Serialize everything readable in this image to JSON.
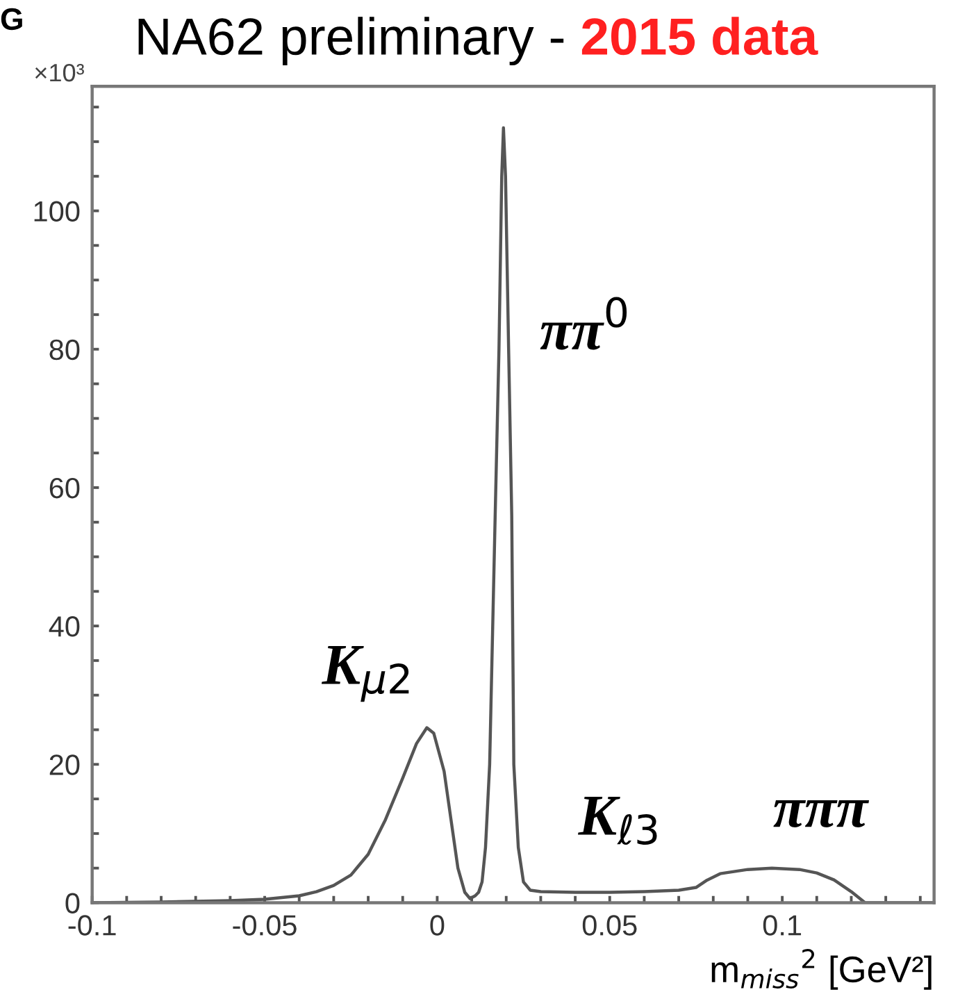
{
  "chart_data": {
    "type": "line",
    "title": "NA62 preliminary - ",
    "subtitle": "2015 data",
    "xlabel": "m$_{miss}$$^{2}$ [GeV²]",
    "x": [
      -0.1,
      -0.08,
      -0.06,
      -0.05,
      -0.04,
      -0.035,
      -0.03,
      -0.025,
      -0.02,
      -0.015,
      -0.01,
      -0.006,
      -0.003,
      -0.001,
      0.002,
      0.004,
      0.006,
      0.008,
      0.0095,
      0.011,
      0.012,
      0.013,
      0.014,
      0.0152,
      0.0168,
      0.0179,
      0.0187,
      0.0192,
      0.0198,
      0.0207,
      0.0216,
      0.0222,
      0.0235,
      0.025,
      0.027,
      0.03,
      0.04,
      0.05,
      0.06,
      0.07,
      0.075,
      0.078,
      0.082,
      0.09,
      0.097,
      0.105,
      0.11,
      0.115,
      0.12,
      0.124,
      0.144
    ],
    "series": [
      {
        "color": "#555555",
        "values": [
          0,
          0.1,
          0.3,
          0.5,
          1.0,
          1.6,
          2.5,
          4,
          7,
          12,
          18,
          23,
          25.3,
          24.5,
          19,
          12,
          5,
          1.5,
          0.6,
          1,
          1.5,
          3,
          8,
          20,
          56,
          80,
          105,
          112,
          105,
          80,
          56,
          20,
          8,
          3,
          1.8,
          1.6,
          1.5,
          1.5,
          1.6,
          1.8,
          2.2,
          3.2,
          4.2,
          4.8,
          5.0,
          4.8,
          4.3,
          3.3,
          1.6,
          0,
          0
        ]
      }
    ],
    "xlim": [
      -0.1,
      0.144
    ],
    "ylim": [
      0,
      118
    ],
    "xticks": [
      -0.1,
      {
        "value": -0.09,
        "label": null
      },
      {
        "value": -0.08,
        "label": null
      },
      {
        "value": -0.07,
        "label": null
      },
      {
        "value": -0.06,
        "label": null
      },
      -0.05,
      {
        "value": -0.04,
        "label": null
      },
      {
        "value": -0.03,
        "label": null
      },
      {
        "value": -0.02,
        "label": null
      },
      {
        "value": -0.01,
        "label": null
      },
      0,
      {
        "value": 0.01,
        "label": null
      },
      {
        "value": 0.02,
        "label": null
      },
      {
        "value": 0.03,
        "label": null
      },
      {
        "value": 0.04,
        "label": null
      },
      0.05,
      {
        "value": 0.06,
        "label": null
      },
      {
        "value": 0.07,
        "label": null
      },
      {
        "value": 0.08,
        "label": null
      },
      {
        "value": 0.09,
        "label": null
      },
      0.1,
      {
        "value": 0.11,
        "label": null
      },
      {
        "value": 0.12,
        "label": null
      },
      {
        "value": 0.13,
        "label": null
      },
      {
        "value": 0.14,
        "label": null
      }
    ],
    "yticks": [
      0,
      {
        "value": 5,
        "label": null
      },
      {
        "value": 10,
        "label": null
      },
      {
        "value": 15,
        "label": null
      },
      20,
      {
        "value": 25,
        "label": null
      },
      {
        "value": 30,
        "label": null
      },
      {
        "value": 35,
        "label": null
      },
      40,
      {
        "value": 45,
        "label": null
      },
      {
        "value": 50,
        "label": null
      },
      {
        "value": 55,
        "label": null
      },
      60,
      {
        "value": 65,
        "label": null
      },
      {
        "value": 70,
        "label": null
      },
      {
        "value": 75,
        "label": null
      },
      80,
      {
        "value": 85,
        "label": null
      },
      {
        "value": 90,
        "label": null
      },
      {
        "value": 95,
        "label": null
      },
      100,
      {
        "value": 105,
        "label": null
      },
      {
        "value": 110,
        "label": null
      },
      {
        "value": 115,
        "label": null
      }
    ],
    "grid": false,
    "legend": false,
    "marker": "none",
    "line_style": "solid",
    "annotations": [
      "K$_{μ2}$",
      "ππ$^{0}$",
      "K$_{ℓ3}$",
      "πππ",
      "×10³",
      "G"
    ]
  }
}
